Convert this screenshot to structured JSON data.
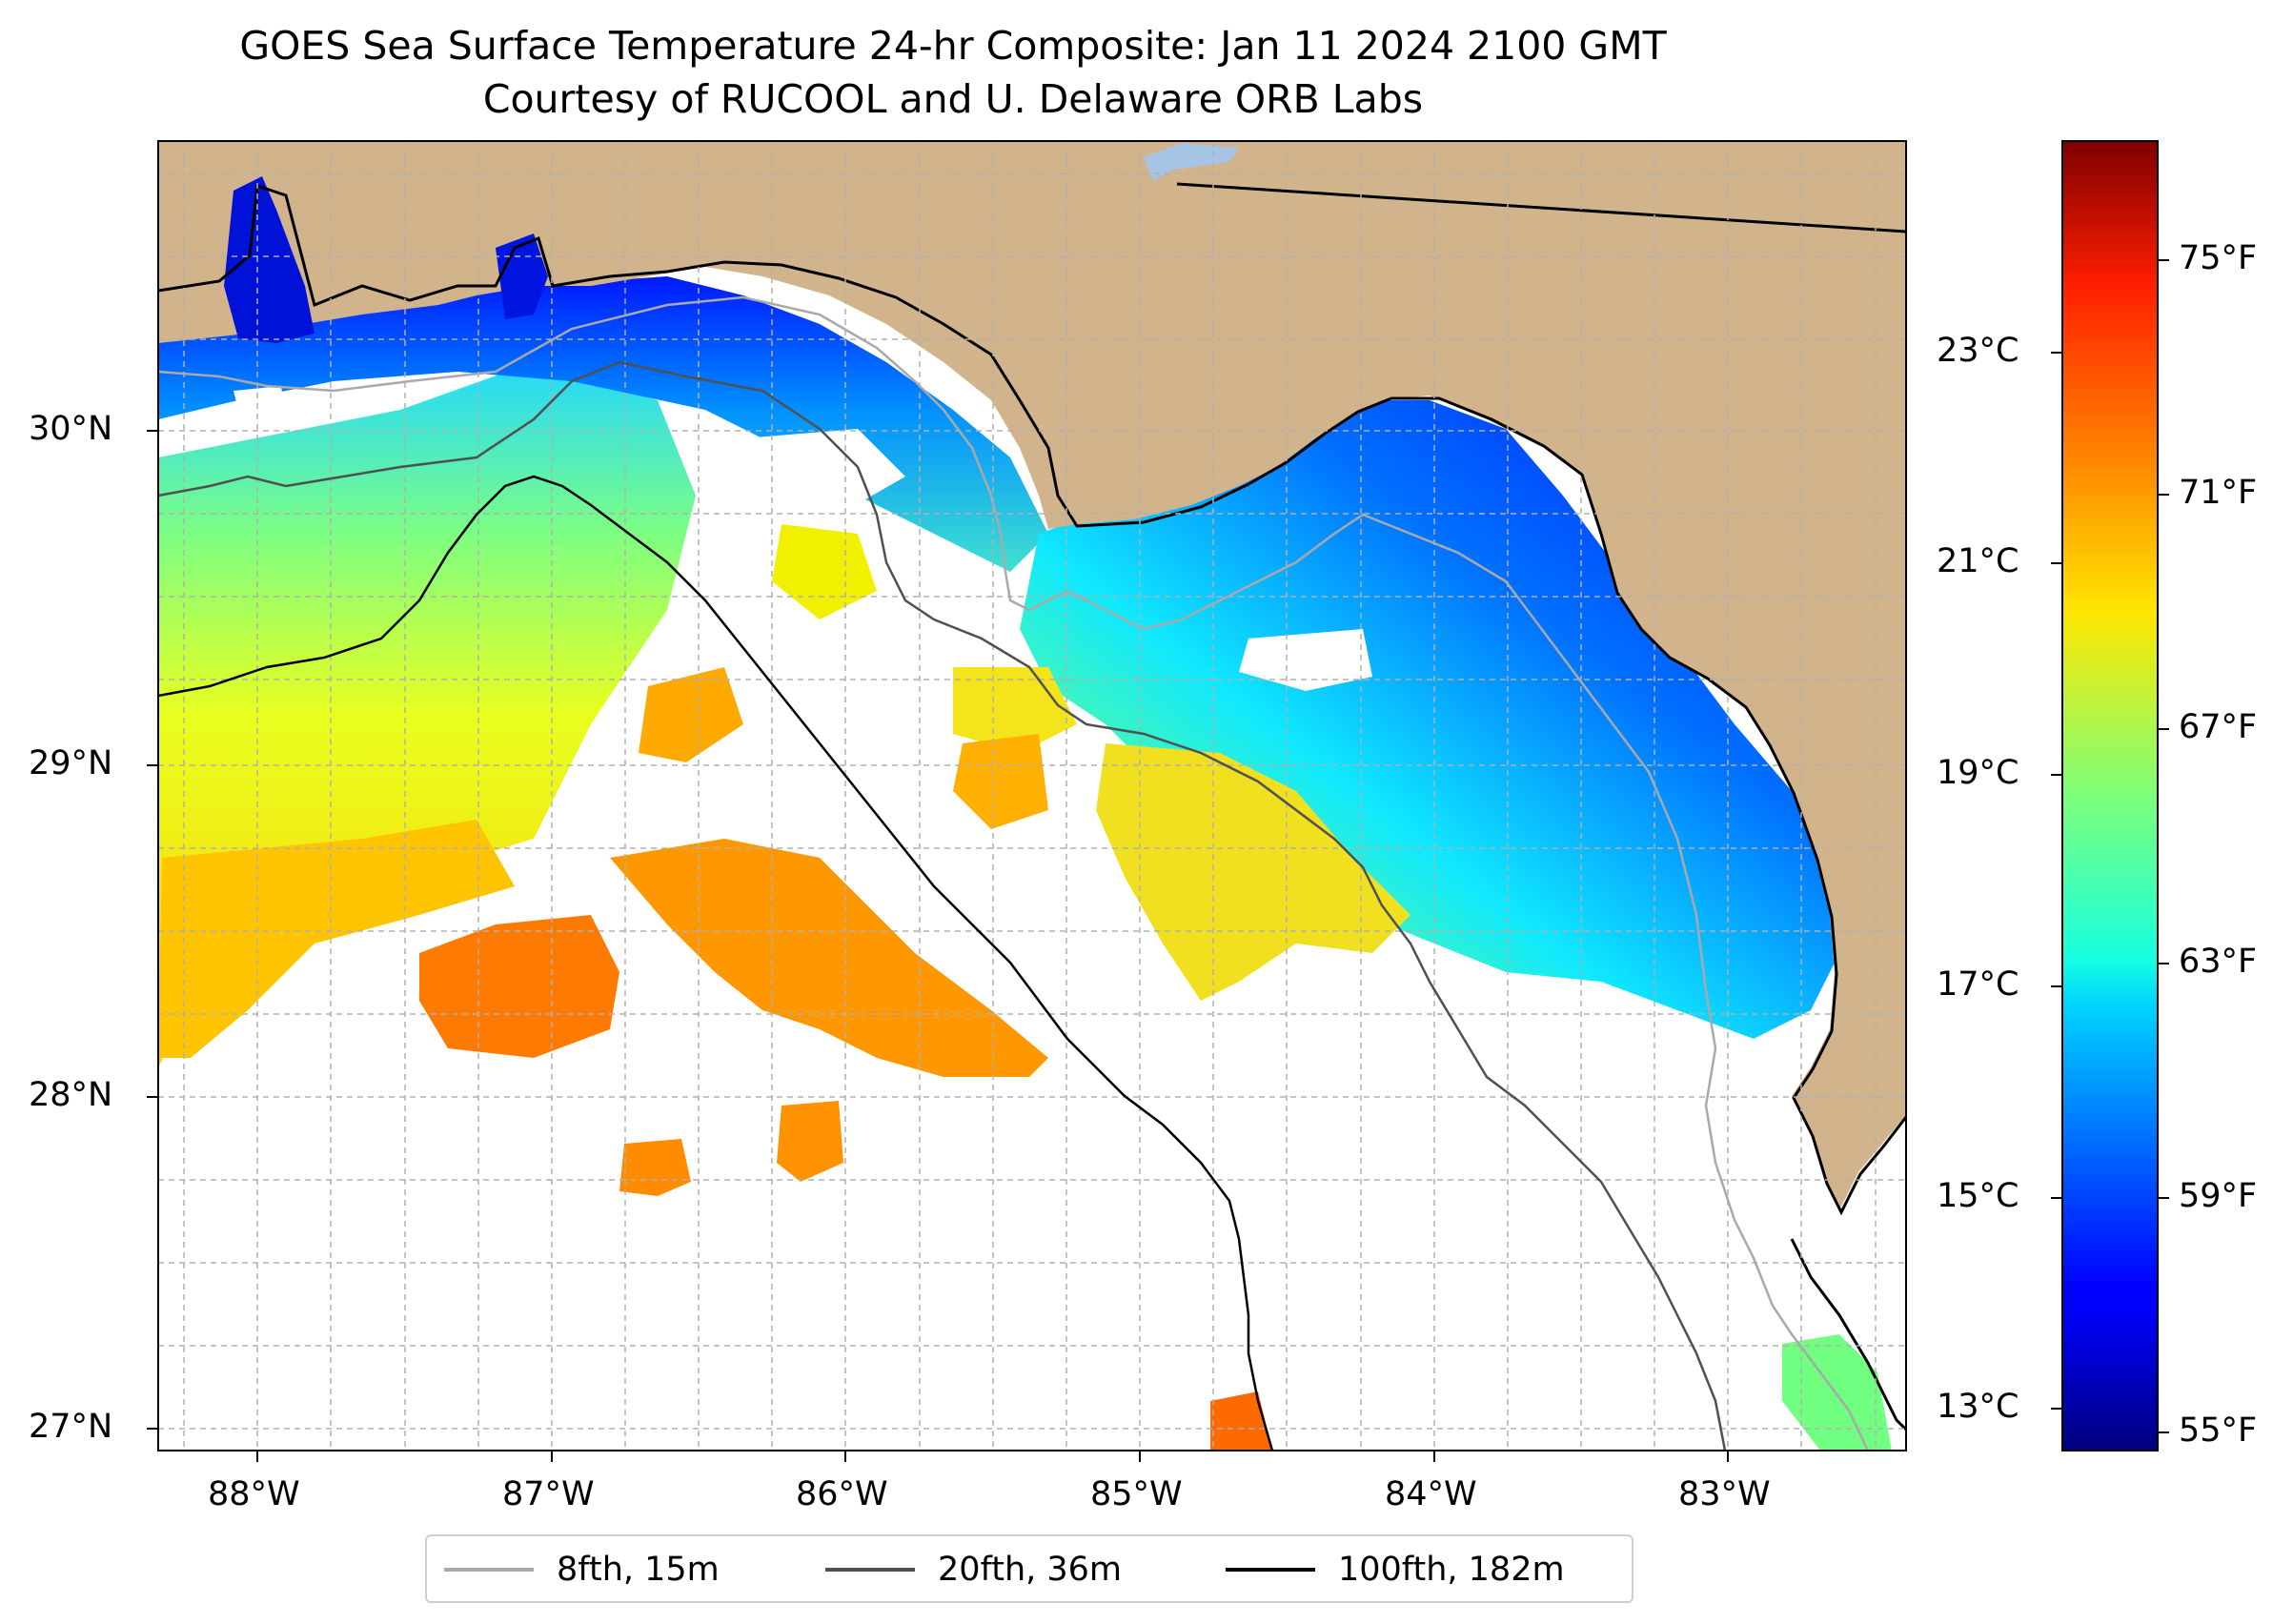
{
  "title": "GOES Sea Surface Temperature 24-hr Composite: Jan 11 2024 2100 GMT",
  "subtitle": "Courtesy of RUCOOL and U. Delaware ORB Labs",
  "colors": {
    "land": "#D2B48C",
    "water_no_data": "#ffffff",
    "lake": "#A6C4E4",
    "isobath_8fth": "#A9A9A9",
    "isobath_20fth": "#505050",
    "isobath_100fth": "#000000"
  },
  "axes": {
    "lon_labels": [
      "88°W",
      "87°W",
      "86°W",
      "85°W",
      "84°W",
      "83°W"
    ],
    "lat_labels": [
      "30°N",
      "29°N",
      "28°N",
      "27°N"
    ]
  },
  "legend": [
    {
      "label": "8fth, 15m",
      "color": "#A9A9A9"
    },
    {
      "label": "20fth, 36m",
      "color": "#505050"
    },
    {
      "label": "100fth, 182m",
      "color": "#000000"
    }
  ],
  "colorbar": {
    "colormap": "jet",
    "celsius_labels": [
      "23°C",
      "21°C",
      "19°C",
      "17°C",
      "15°C",
      "13°C"
    ],
    "fahrenheit_labels": [
      "75°F",
      "71°F",
      "67°F",
      "63°F",
      "59°F",
      "55°F"
    ]
  },
  "sst_regions": [
    {
      "name": "west coastal strip",
      "temperature_f": 57
    },
    {
      "name": "offshore west",
      "temperature_f": 67
    },
    {
      "name": "offshore west-central",
      "temperature_f": 70
    },
    {
      "name": "deep water patches",
      "temperature_f": 72
    },
    {
      "name": "big bend nearshore",
      "temperature_f": 58
    },
    {
      "name": "big bend mid-shelf",
      "temperature_f": 62
    },
    {
      "name": "big bend outer shelf",
      "temperature_f": 68
    },
    {
      "name": "southeast shelf patch",
      "temperature_f": 65
    }
  ]
}
